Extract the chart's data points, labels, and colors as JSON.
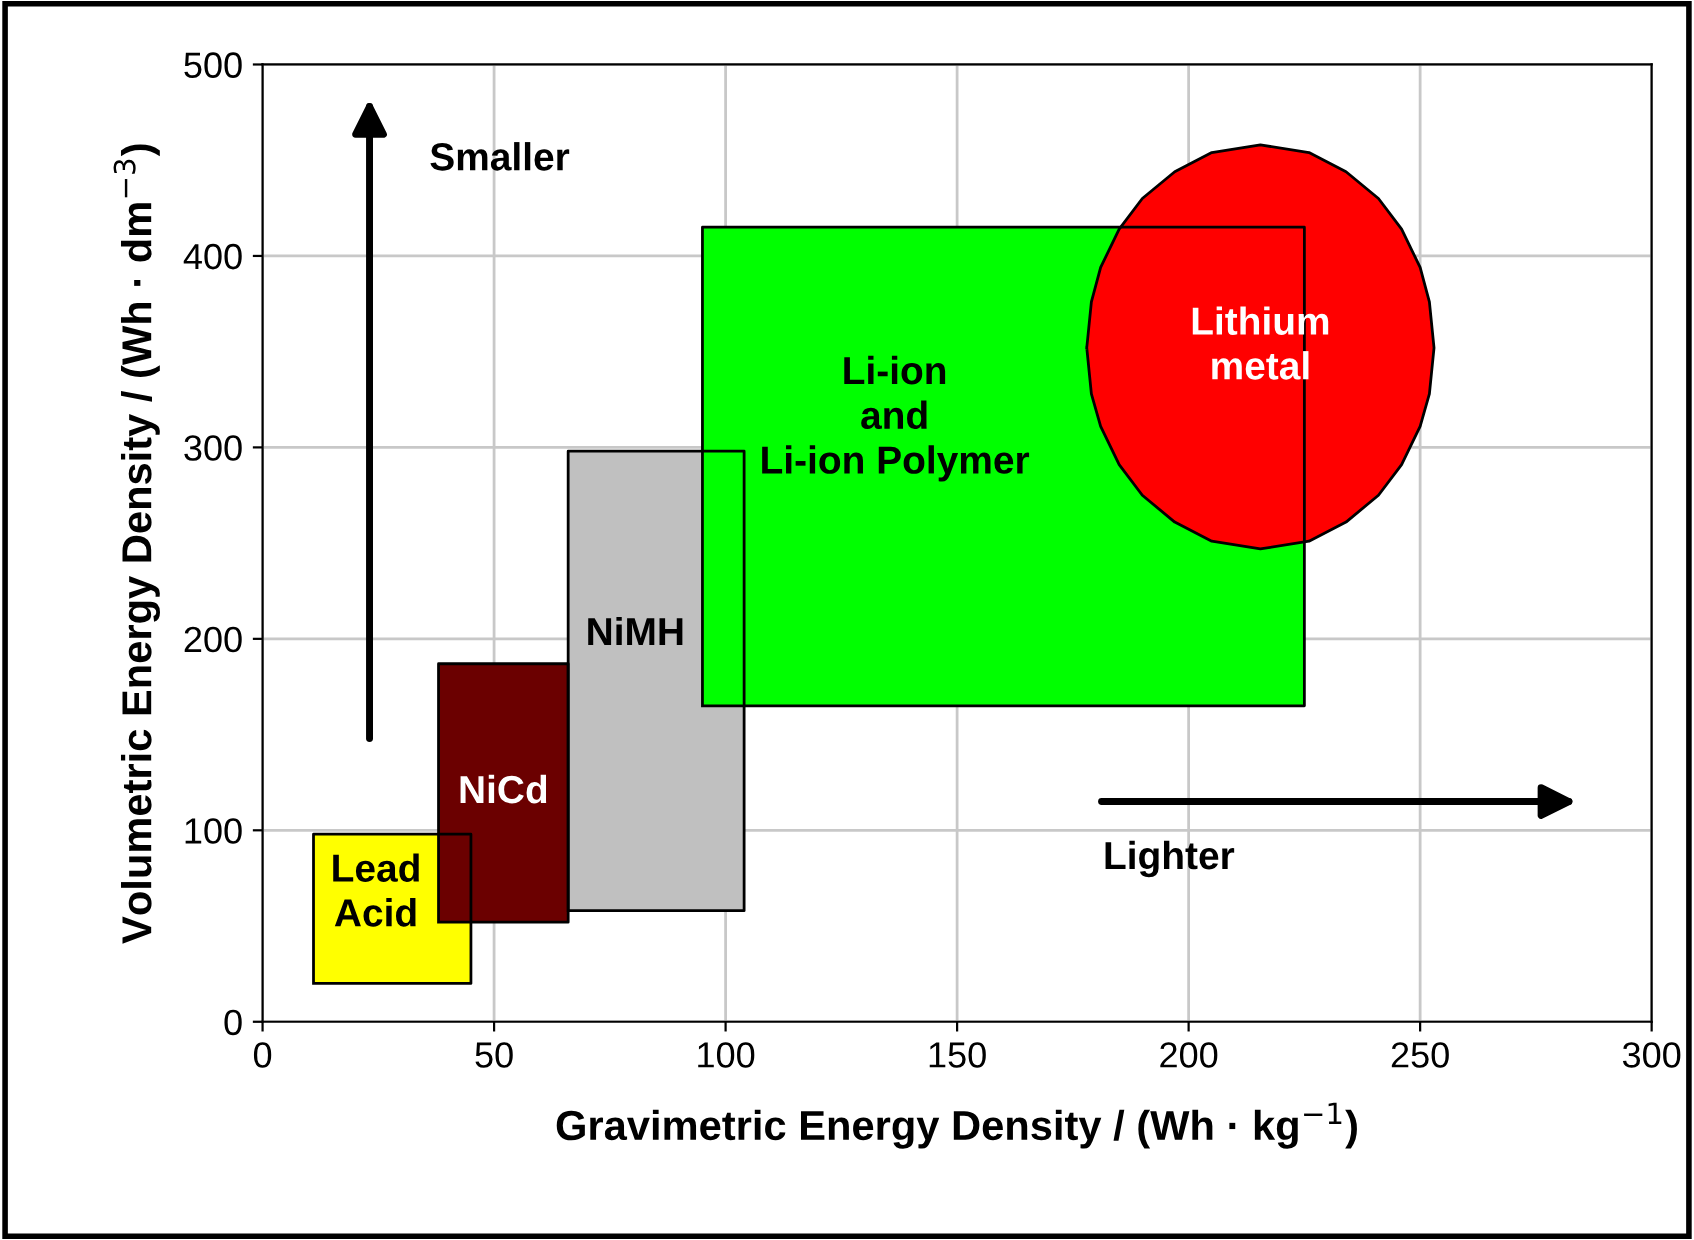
{
  "chart_data": {
    "type": "area",
    "xlabel": "Gravimetric Energy Density / (Wh · kg$^{−1}$)",
    "ylabel": "Volumetric Energy Density / (Wh · dm$^{−3}$)",
    "xlim": [
      0,
      300
    ],
    "xticks": [
      0,
      50,
      100,
      150,
      200,
      250,
      300
    ],
    "ylim": [
      0,
      500
    ],
    "yticks": [
      0,
      100,
      200,
      300,
      400,
      500
    ],
    "grid": true,
    "series": [
      {
        "name": "Lead\nAcid",
        "color": "#ffff00",
        "x": [
          11,
          45,
          45,
          11,
          11
        ],
        "values": [
          20,
          20,
          98,
          98,
          20
        ]
      },
      {
        "name": "NiCd",
        "color": "#6b0000",
        "x": [
          38,
          66,
          66,
          38,
          38
        ],
        "values": [
          52,
          52,
          187,
          187,
          52
        ]
      },
      {
        "name": "NiMH",
        "color": "#c0c0c0",
        "x": [
          66,
          104,
          104,
          66,
          66
        ],
        "values": [
          58,
          58,
          298,
          298,
          58
        ]
      },
      {
        "name": "Li-ion\nand\nLi-ion Polymer",
        "color": "#00ff00",
        "x": [
          95,
          225,
          225,
          95,
          95
        ],
        "values": [
          165,
          165,
          415,
          415,
          165
        ]
      },
      {
        "name": "Lithium\nmetal",
        "color": "#ff0000",
        "x": [
          178,
          179,
          181,
          185,
          190,
          197,
          205,
          215.5,
          226,
          234,
          241,
          246,
          250,
          252,
          253,
          252,
          250,
          246,
          241,
          234,
          226,
          215.5,
          205,
          197,
          190,
          185,
          181,
          179,
          178
        ],
        "values": [
          352,
          376,
          394,
          414,
          430,
          444,
          454,
          458,
          454,
          444,
          430,
          414,
          394,
          376,
          352,
          328,
          311,
          291,
          275,
          261,
          251,
          247,
          251,
          261,
          275,
          291,
          311,
          328,
          352
        ]
      }
    ],
    "annotations": [
      "Smaller",
      "Lighter"
    ]
  }
}
